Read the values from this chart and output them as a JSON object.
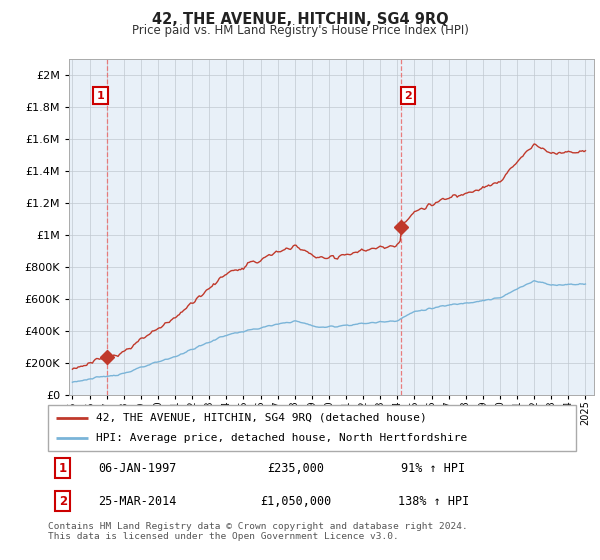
{
  "title": "42, THE AVENUE, HITCHIN, SG4 9RQ",
  "subtitle": "Price paid vs. HM Land Registry's House Price Index (HPI)",
  "xlim": [
    1994.8,
    2025.5
  ],
  "ylim": [
    0,
    2100000
  ],
  "yticks": [
    0,
    200000,
    400000,
    600000,
    800000,
    1000000,
    1200000,
    1400000,
    1600000,
    1800000,
    2000000
  ],
  "xtick_years": [
    1995,
    1996,
    1997,
    1998,
    1999,
    2000,
    2001,
    2002,
    2003,
    2004,
    2005,
    2006,
    2007,
    2008,
    2009,
    2010,
    2011,
    2012,
    2013,
    2014,
    2015,
    2016,
    2017,
    2018,
    2019,
    2020,
    2021,
    2022,
    2023,
    2024,
    2025
  ],
  "hpi_color": "#7ab4d8",
  "price_color": "#c0392b",
  "dashed_color": "#e87070",
  "sale1_x": 1997.02,
  "sale1_y": 235000,
  "sale2_x": 2014.23,
  "sale2_y": 1050000,
  "plot_bg_color": "#e8f0f8",
  "legend_line1": "42, THE AVENUE, HITCHIN, SG4 9RQ (detached house)",
  "legend_line2": "HPI: Average price, detached house, North Hertfordshire",
  "table_rows": [
    [
      "1",
      "06-JAN-1997",
      "£235,000",
      "91% ↑ HPI"
    ],
    [
      "2",
      "25-MAR-2014",
      "£1,050,000",
      "138% ↑ HPI"
    ]
  ],
  "footnote": "Contains HM Land Registry data © Crown copyright and database right 2024.\nThis data is licensed under the Open Government Licence v3.0.",
  "background_color": "#ffffff",
  "grid_color": "#c0c8d0"
}
